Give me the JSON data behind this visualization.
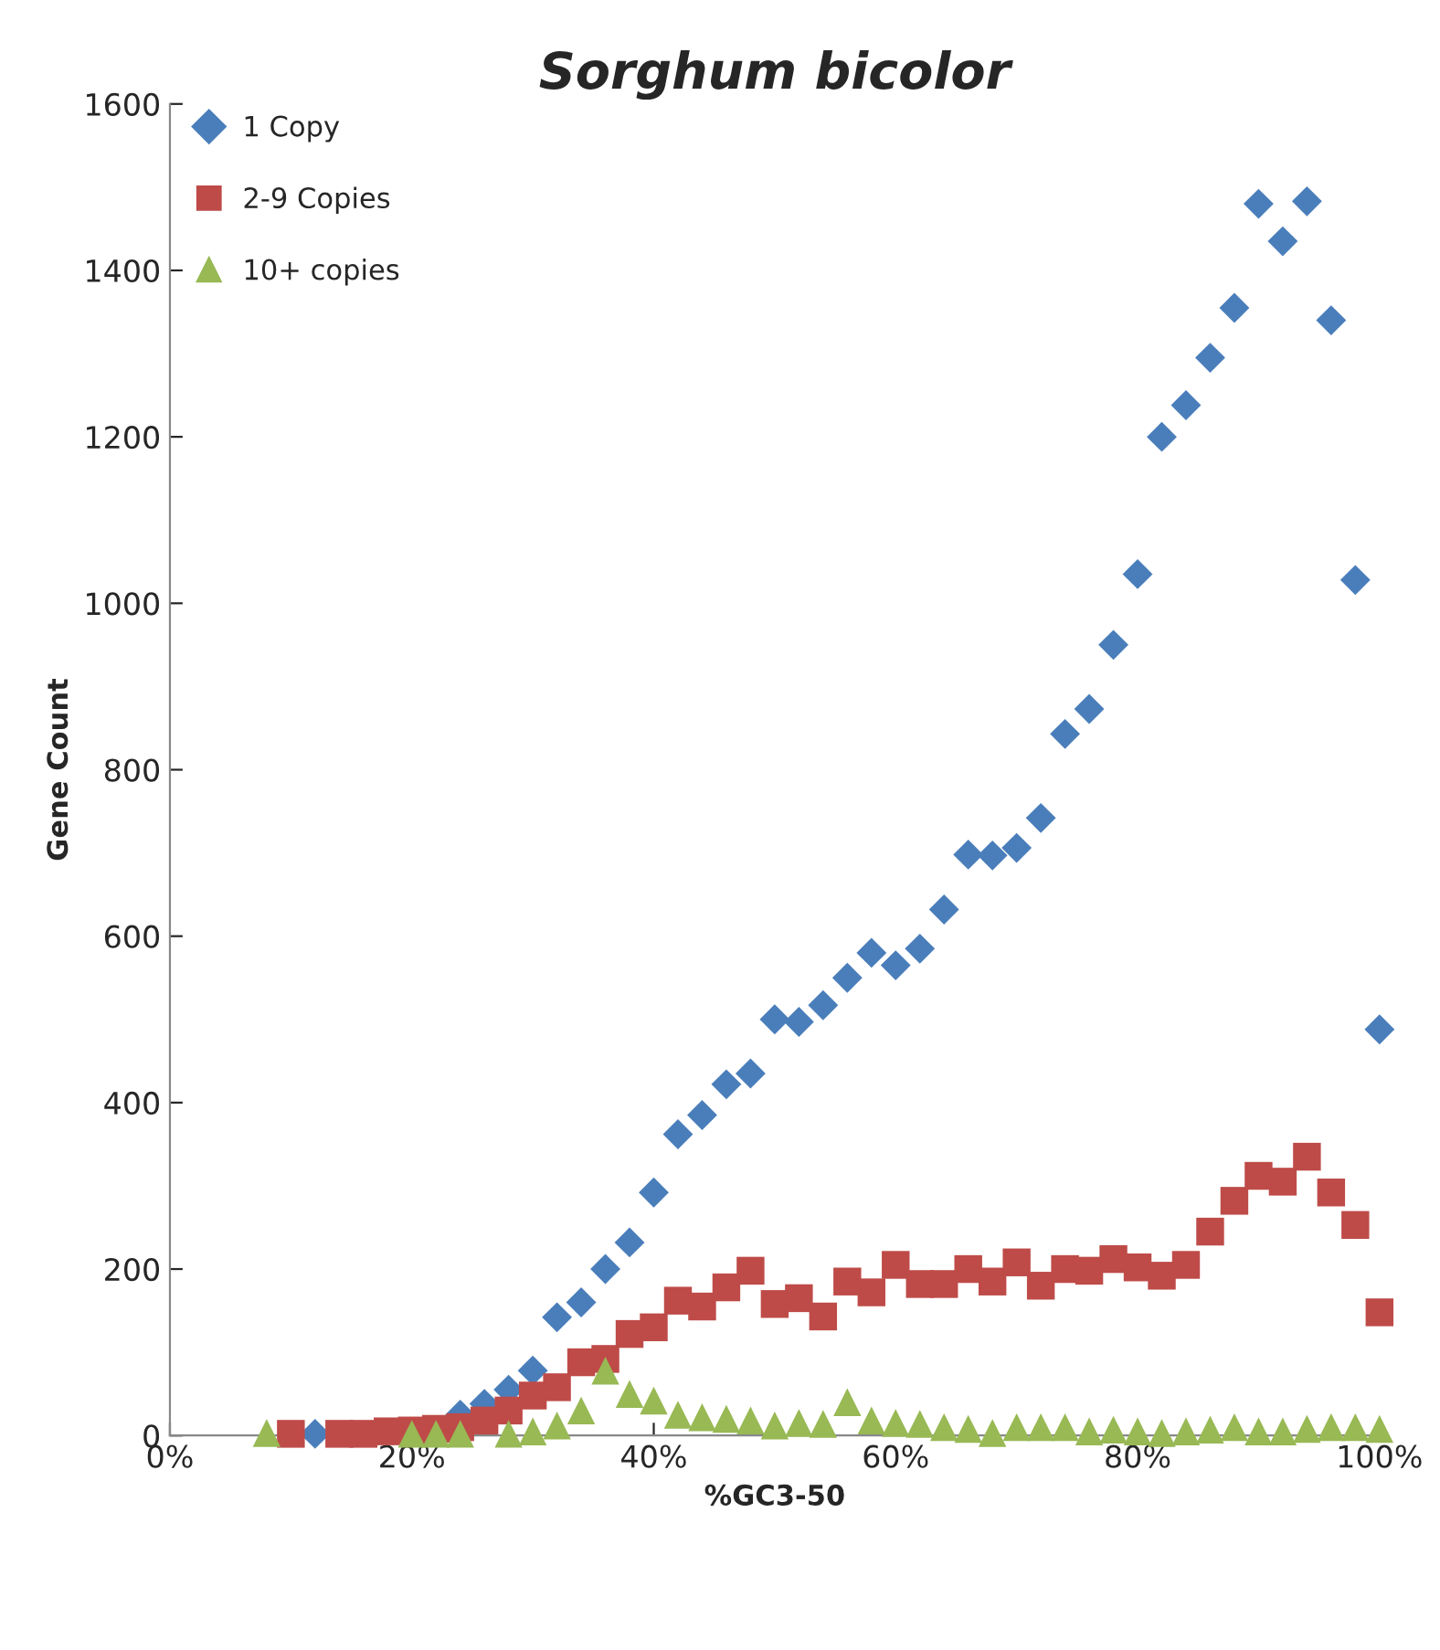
{
  "chart_data": {
    "type": "scatter",
    "title": "Sorghum bicolor",
    "xlabel": "%GC3-50",
    "ylabel": "Gene Count",
    "xlim": [
      0,
      100
    ],
    "xticks": [
      {
        "value": 0,
        "label": "0%"
      },
      {
        "value": 20,
        "label": "20%"
      },
      {
        "value": 40,
        "label": "40%"
      },
      {
        "value": 60,
        "label": "60%"
      },
      {
        "value": 80,
        "label": "80%"
      },
      {
        "value": 100,
        "label": "100%"
      }
    ],
    "ylim": [
      0,
      1600
    ],
    "yticks": [
      0,
      200,
      400,
      600,
      800,
      1000,
      1200,
      1400,
      1600
    ],
    "grid": false,
    "legend": "top left",
    "series": [
      {
        "name": "1 Copy",
        "color": "#4a7ebb",
        "marker": "diamond",
        "x": [
          12,
          24,
          26,
          28,
          30,
          32,
          34,
          36,
          38,
          40,
          42,
          44,
          46,
          48,
          50,
          52,
          54,
          56,
          58,
          60,
          62,
          64,
          66,
          68,
          70,
          72,
          74,
          76,
          78,
          80,
          82,
          84,
          86,
          88,
          90,
          92,
          94,
          96,
          98,
          100
        ],
        "values": [
          2,
          25,
          38,
          55,
          78,
          142,
          160,
          200,
          232,
          292,
          362,
          385,
          422,
          435,
          500,
          497,
          517,
          550,
          580,
          565,
          585,
          632,
          698,
          697,
          706,
          742,
          843,
          873,
          950,
          1035,
          1200,
          1238,
          1295,
          1355,
          1480,
          1435,
          1483,
          1340,
          1028,
          488
        ]
      },
      {
        "name": "2-9 Copies",
        "color": "#be4b48",
        "marker": "square",
        "x": [
          10,
          14,
          16,
          18,
          20,
          22,
          24,
          26,
          28,
          30,
          32,
          34,
          36,
          38,
          40,
          42,
          44,
          46,
          48,
          50,
          52,
          54,
          56,
          58,
          60,
          62,
          64,
          66,
          68,
          70,
          72,
          74,
          76,
          78,
          80,
          82,
          84,
          86,
          88,
          90,
          92,
          94,
          96,
          98,
          100
        ],
        "values": [
          2,
          2,
          2,
          5,
          6,
          8,
          10,
          18,
          30,
          48,
          58,
          88,
          92,
          122,
          130,
          162,
          155,
          178,
          198,
          158,
          165,
          143,
          185,
          172,
          205,
          182,
          182,
          200,
          185,
          208,
          180,
          200,
          198,
          212,
          202,
          192,
          205,
          245,
          282,
          312,
          305,
          335,
          292,
          253,
          148
        ]
      },
      {
        "name": "10+ copies",
        "color": "#98b954",
        "marker": "triangle",
        "x": [
          8,
          20,
          22,
          24,
          28,
          30,
          32,
          34,
          36,
          38,
          40,
          42,
          44,
          46,
          48,
          50,
          52,
          54,
          56,
          58,
          60,
          62,
          64,
          66,
          68,
          70,
          72,
          74,
          76,
          78,
          80,
          82,
          84,
          86,
          88,
          90,
          92,
          94,
          96,
          98,
          100
        ],
        "values": [
          3,
          2,
          2,
          2,
          2,
          5,
          12,
          30,
          78,
          50,
          42,
          25,
          22,
          20,
          18,
          12,
          15,
          14,
          40,
          18,
          15,
          14,
          10,
          8,
          3,
          10,
          10,
          10,
          5,
          7,
          5,
          3,
          5,
          7,
          10,
          5,
          5,
          8,
          10,
          10,
          8
        ]
      }
    ]
  }
}
